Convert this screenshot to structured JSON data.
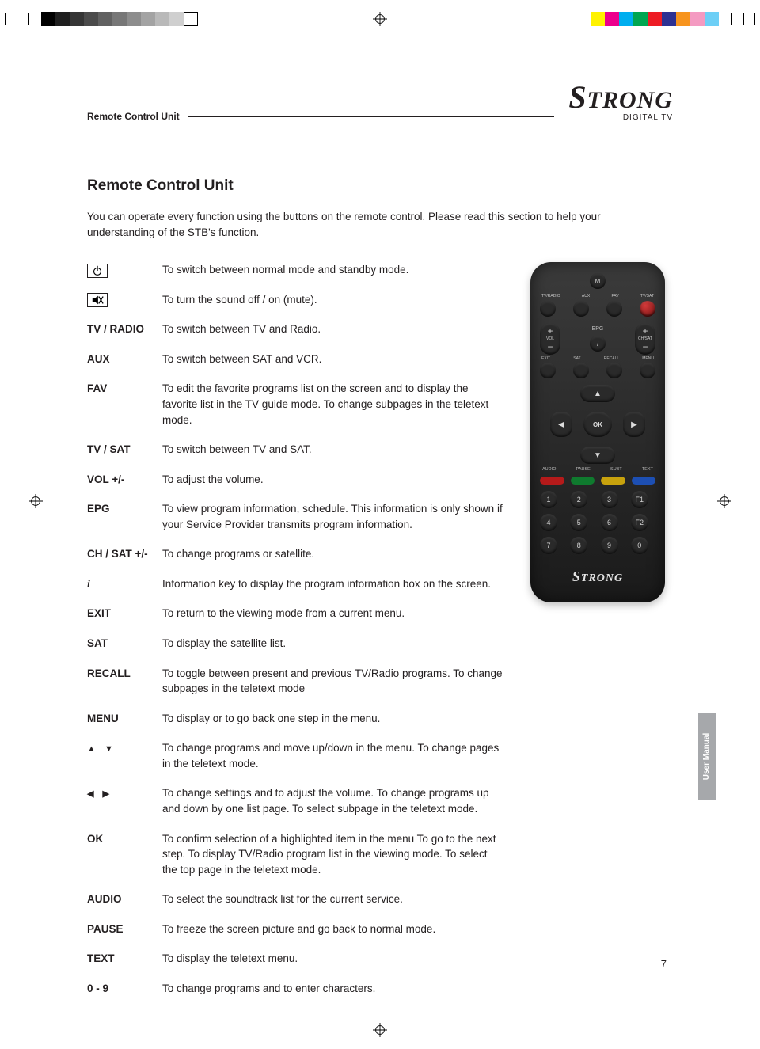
{
  "printer_bar": {
    "gray_swatches": [
      "#000000",
      "#1f1f1f",
      "#353535",
      "#4b4b4b",
      "#616161",
      "#777777",
      "#8d8d8d",
      "#a3a3a3",
      "#b9b9b9",
      "#cfcfcf",
      "#ffffff"
    ],
    "colour_swatches": [
      "#fff200",
      "#ec008c",
      "#00aeef",
      "#00a651",
      "#ed1c24",
      "#2e3192",
      "#f7941e",
      "#f49ac1",
      "#6dcff6"
    ]
  },
  "header": {
    "section_label": "Remote Control Unit",
    "brand_name": "STRONG",
    "brand_sub": "DIGITAL TV"
  },
  "title": "Remote Control Unit",
  "intro": "You can operate every function using the buttons on the remote control. Please read this section to help your understanding of the STB's function.",
  "rows": [
    {
      "label_type": "power-icon",
      "desc": "To switch between normal mode and standby mode."
    },
    {
      "label_type": "mute-icon",
      "desc": "To turn the sound off / on (mute)."
    },
    {
      "label": "TV / RADIO",
      "desc": "To switch between TV and Radio."
    },
    {
      "label": "AUX",
      "desc": "To switch between SAT and VCR."
    },
    {
      "label": "FAV",
      "desc": "To edit the favorite programs list on the screen and to display the favorite list in the TV guide mode. To change subpages in the teletext mode."
    },
    {
      "label": "TV / SAT",
      "desc": "To switch between TV and SAT."
    },
    {
      "label": "VOL +/-",
      "desc": "To adjust the volume."
    },
    {
      "label": "EPG",
      "desc": "To view program information, schedule. This information is only shown if your Service Provider transmits program information."
    },
    {
      "label": "CH / SAT +/-",
      "desc": "To change programs or satellite."
    },
    {
      "label": "i",
      "label_style": "italic",
      "desc": "Information key to display the program information box on the screen."
    },
    {
      "label": "EXIT",
      "desc": "To return to the viewing mode from a current menu."
    },
    {
      "label": "SAT",
      "desc": "To display the satellite list."
    },
    {
      "label": "RECALL",
      "desc": "To toggle between present and previous TV/Radio programs. To change subpages in the teletext mode"
    },
    {
      "label": "MENU",
      "desc": "To display or to go back one step in the menu."
    },
    {
      "label_type": "arrows-ud",
      "desc": "To change programs and move up/down in the menu. To change pages in the teletext mode."
    },
    {
      "label_type": "arrows-lr",
      "desc": "To change settings and to adjust the volume. To change programs up and down by one list page. To select subpage in the teletext mode."
    },
    {
      "label": "OK",
      "desc": "To confirm selection of a highlighted item in the menu To go to the next step. To display TV/Radio program list in the viewing mode. To select the top page in the teletext mode."
    },
    {
      "label": "AUDIO",
      "desc": "To select the soundtrack list for the current service."
    },
    {
      "label": "PAUSE",
      "desc": "To freeze the screen picture and go back to normal mode."
    },
    {
      "label": "TEXT",
      "desc": "To display the teletext menu."
    },
    {
      "label": "0 - 9",
      "desc": "To change programs and to enter characters."
    }
  ],
  "remote": {
    "top_labels": [
      "TV/RADIO",
      "AUX",
      "FAV",
      "TV/SAT"
    ],
    "mid_labels_left": "VOL",
    "mid_labels_right": "CH/SAT",
    "epg_label": "EPG",
    "info_label": "i",
    "small_row": [
      "EXIT",
      "SAT",
      "RECALL",
      "MENU"
    ],
    "ok_label": "OK",
    "under_dpad": [
      "AUDIO",
      "PAUSE",
      "SUBT",
      "TEXT"
    ],
    "colour_buttons": [
      "#b51a1a",
      "#0f7a2e",
      "#c8a20d",
      "#1d4fb3"
    ],
    "numpad": [
      "1",
      "2",
      "3",
      "F1",
      "4",
      "5",
      "6",
      "F2",
      "7",
      "8",
      "9",
      "0"
    ],
    "brand": "STRONG",
    "mute_label": "M"
  },
  "side_tab": "User Manual",
  "page_number": "7"
}
